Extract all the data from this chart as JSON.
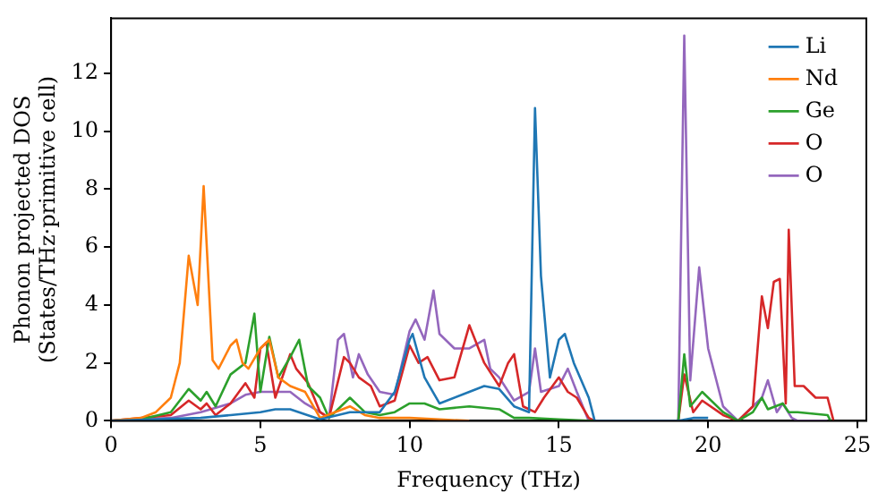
{
  "chart_data": {
    "type": "line",
    "xlabel": "Frequency (THz)",
    "ylabel": "Phonon projected DOS\n(States/THz·primitive cell)",
    "xlim": [
      0,
      25.3
    ],
    "ylim": [
      0,
      13.9
    ],
    "xticks": [
      0,
      5,
      10,
      15,
      20,
      25
    ],
    "yticks": [
      0,
      2,
      4,
      6,
      8,
      10,
      12
    ],
    "legend": "top right",
    "grid": false,
    "marker": "none",
    "line_style": "solid",
    "series": [
      {
        "name": "Li",
        "color": "#1f77b4",
        "x": [
          0,
          3,
          4,
          5,
          5.5,
          6,
          7,
          8,
          9,
          9.5,
          10,
          10.1,
          10.5,
          11,
          12,
          12.5,
          13,
          13.5,
          14,
          14.2,
          14.4,
          14.7,
          15,
          15.2,
          15.5,
          16,
          16.2,
          19,
          19.5,
          20
        ],
        "values": [
          0,
          0.1,
          0.2,
          0.3,
          0.4,
          0.4,
          0.05,
          0.3,
          0.3,
          1,
          2.8,
          3,
          1.5,
          0.6,
          1,
          1.2,
          1.1,
          0.5,
          0.3,
          10.8,
          5,
          1.5,
          2.8,
          3,
          2,
          0.8,
          0,
          0,
          0.1,
          0.1
        ]
      },
      {
        "name": "Nd",
        "color": "#ff7f0e",
        "x": [
          0,
          1,
          1.5,
          2,
          2.3,
          2.6,
          2.9,
          3.1,
          3.4,
          3.6,
          4,
          4.2,
          4.4,
          4.6,
          5,
          5.3,
          5.6,
          6,
          6.5,
          7,
          7.5,
          8,
          8.5,
          9,
          10,
          11,
          12
        ],
        "values": [
          0,
          0.1,
          0.3,
          0.8,
          2,
          5.7,
          4,
          8.1,
          2.1,
          1.8,
          2.6,
          2.8,
          2,
          1.8,
          2.5,
          2.8,
          1.5,
          1.2,
          1,
          0.1,
          0.3,
          0.5,
          0.2,
          0.1,
          0.1,
          0.05,
          0
        ]
      },
      {
        "name": "Ge",
        "color": "#2ca02c",
        "x": [
          0,
          1,
          2,
          2.6,
          3,
          3.2,
          3.5,
          4,
          4.5,
          4.8,
          5,
          5.3,
          5.6,
          6,
          6.3,
          6.6,
          7,
          7.3,
          7.7,
          8,
          8.5,
          9,
          9.5,
          10,
          10.5,
          11,
          12,
          13,
          13.5,
          14,
          15,
          16,
          19,
          19.2,
          19.4,
          19.8,
          20.5,
          21,
          21.5,
          21.8,
          22,
          22.5,
          22.7,
          23,
          24,
          24.1
        ],
        "values": [
          0,
          0.05,
          0.3,
          1.1,
          0.7,
          1,
          0.5,
          1.6,
          2,
          3.7,
          1,
          2.9,
          1.5,
          2.2,
          2.8,
          1.2,
          0.8,
          0.1,
          0.5,
          0.8,
          0.3,
          0.2,
          0.3,
          0.6,
          0.6,
          0.4,
          0.5,
          0.4,
          0.1,
          0.1,
          0.05,
          0,
          0,
          2.3,
          0.5,
          1,
          0.3,
          0,
          0.3,
          0.8,
          0.4,
          0.6,
          0.3,
          0.3,
          0.2,
          0
        ]
      },
      {
        "name": "O",
        "color": "#d62728",
        "x": [
          0,
          2,
          2.6,
          3,
          3.2,
          3.5,
          4,
          4.5,
          4.8,
          5,
          5.2,
          5.5,
          6,
          6.2,
          6.6,
          7,
          7.3,
          7.8,
          8,
          8.3,
          8.7,
          9,
          9.5,
          10,
          10.3,
          10.6,
          11,
          11.5,
          12,
          12.5,
          13,
          13.3,
          13.5,
          13.8,
          14.2,
          14.5,
          15,
          15.3,
          15.6,
          16,
          16.2,
          19,
          19.2,
          19.5,
          19.8,
          20.5,
          21,
          21.5,
          21.8,
          22,
          22.2,
          22.4,
          22.6,
          22.7,
          22.9,
          23.2,
          23.6,
          24,
          24.2
        ],
        "values": [
          0,
          0.2,
          0.7,
          0.4,
          0.6,
          0.2,
          0.6,
          1.3,
          0.8,
          2.5,
          2.7,
          0.8,
          2.3,
          1.8,
          1.3,
          0.3,
          0.1,
          2.2,
          2,
          1.5,
          1.2,
          0.5,
          0.7,
          2.6,
          2,
          2.2,
          1.4,
          1.5,
          3.3,
          2,
          1.2,
          2,
          2.3,
          0.5,
          0.3,
          0.8,
          1.5,
          1,
          0.8,
          0.1,
          0,
          0,
          1.6,
          0.3,
          0.7,
          0.2,
          0,
          0.5,
          4.3,
          3.2,
          4.8,
          4.9,
          0.6,
          6.6,
          1.2,
          1.2,
          0.8,
          0.8,
          0
        ]
      },
      {
        "name": "O",
        "color": "#9467bd",
        "x": [
          0,
          2,
          3,
          4,
          4.5,
          5,
          5.5,
          6,
          6.5,
          7,
          7.3,
          7.6,
          7.8,
          8.1,
          8.3,
          8.6,
          9,
          9.5,
          10,
          10.2,
          10.5,
          10.8,
          11,
          11.5,
          12,
          12.5,
          12.7,
          13,
          13.5,
          14,
          14.2,
          14.4,
          15,
          15.3,
          15.6,
          16,
          19,
          19.2,
          19.4,
          19.7,
          20,
          20.5,
          21,
          21.5,
          21.8,
          22,
          22.3,
          22.5,
          22.8,
          23,
          24
        ],
        "values": [
          0,
          0.1,
          0.3,
          0.6,
          0.9,
          1,
          1,
          1,
          0.6,
          0.3,
          0.1,
          2.8,
          3,
          1.5,
          2.3,
          1.6,
          1,
          0.9,
          3.1,
          3.5,
          2.8,
          4.5,
          3,
          2.5,
          2.5,
          2.8,
          1.8,
          1.5,
          0.7,
          1,
          2.5,
          1,
          1.2,
          1.8,
          1,
          0,
          0,
          13.3,
          1.4,
          5.3,
          2.5,
          0.5,
          0,
          0.5,
          0.8,
          1.4,
          0.3,
          0.6,
          0.1,
          0,
          0
        ]
      }
    ]
  }
}
